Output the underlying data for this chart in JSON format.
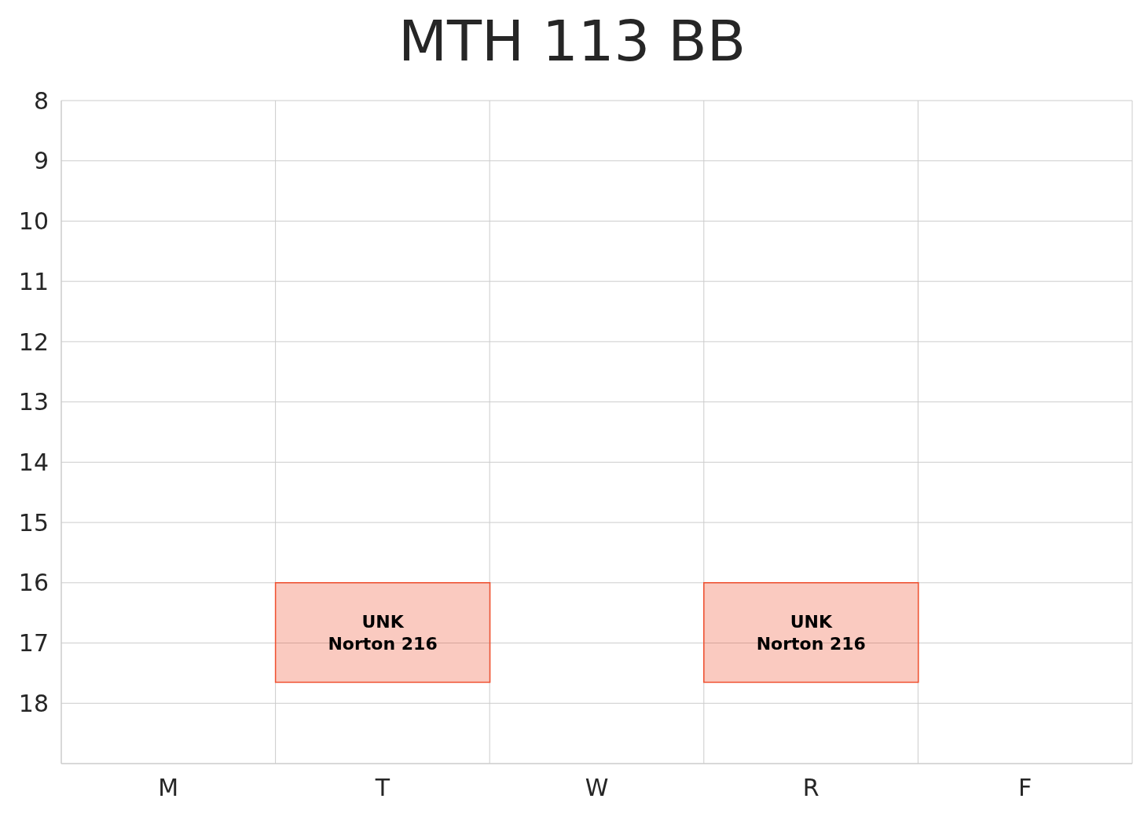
{
  "chart_data": {
    "type": "bar",
    "title": "MTH 113 BB",
    "categories": [
      "M",
      "T",
      "W",
      "R",
      "F"
    ],
    "base": [
      null,
      16,
      null,
      16,
      null
    ],
    "values": [
      null,
      1.65,
      null,
      1.65,
      null
    ],
    "color": "#f05030",
    "ylim": [
      19,
      8
    ],
    "yticks": [
      8,
      9,
      10,
      11,
      12,
      13,
      14,
      15,
      16,
      17,
      18
    ],
    "grid": true,
    "annotations": [
      "UNK\nNorton 216",
      "UNK\nNorton 216"
    ]
  }
}
